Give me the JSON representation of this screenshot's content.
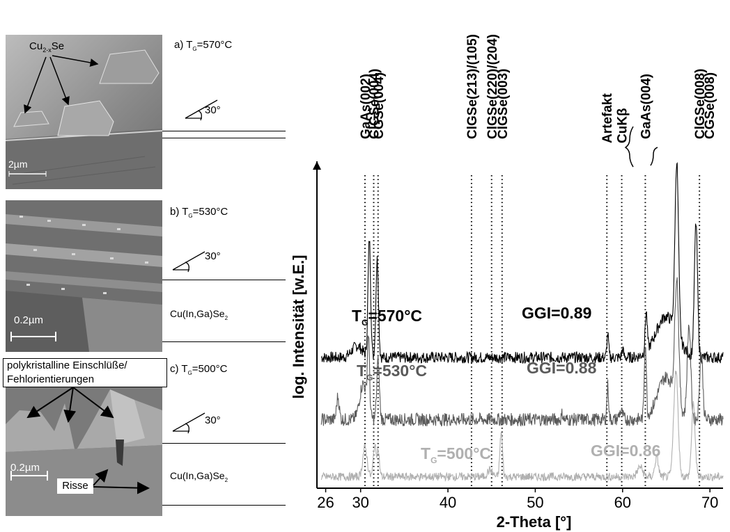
{
  "panels": [
    {
      "label": "a) T",
      "sub": "G",
      "temp": "=570°C",
      "angle": "30°",
      "scalebar": "2µm",
      "annotation_main": "Cu",
      "annotation_sub": "2-x",
      "annotation_end": "Se"
    },
    {
      "label": "b) T",
      "sub": "G",
      "temp": "=530°C",
      "angle": "30°",
      "scalebar": "0.2µm",
      "layer_main": "Cu(In,Ga)Se",
      "layer_sub": "2"
    },
    {
      "label": "c) T",
      "sub": "G",
      "temp": "=500°C",
      "angle": "30°",
      "scalebar": "0.2µm",
      "layer_main": "Cu(In,Ga)Se",
      "layer_sub": "2",
      "box_line1": "polykristalline Einschlüße/",
      "box_line2": "Fehlorientierungen",
      "risse": "Risse"
    }
  ],
  "chart_data": {
    "type": "line",
    "xlabel": "2-Theta [°]",
    "ylabel": "log. Intensität [w.E.]",
    "xlim": [
      25,
      71.5
    ],
    "x_ticks": [
      26,
      30,
      40,
      50,
      60,
      70
    ],
    "peak_labels": [
      {
        "x": 30.5,
        "label": "GaAs(002)"
      },
      {
        "x": 31.5,
        "label": "ClGSe(004)"
      },
      {
        "x": 32.0,
        "label": "CGSe(004)"
      },
      {
        "x": 42.7,
        "label": "ClGSe(213)/(105)"
      },
      {
        "x": 45.0,
        "label": "ClGSe(220)/(204)"
      },
      {
        "x": 46.2,
        "label": "ClGSe(003)"
      },
      {
        "x": 58.2,
        "label": "Artefakt"
      },
      {
        "x": 59.9,
        "label": "CuKβ"
      },
      {
        "x": 62.6,
        "label": "GaAs(004)"
      },
      {
        "x": 68.8,
        "label": "ClGSe(008)"
      },
      {
        "x": 69.9,
        "label": "CGSe(008)"
      }
    ],
    "series": [
      {
        "name": "T=570°C",
        "label_main": "T",
        "label_sub": "G",
        "label_temp": "=570°C",
        "ggi": "GGI=0.89",
        "color": "#000000",
        "baseline": 8.0,
        "noise": 0.35,
        "peaks": [
          [
            29.6,
            0.7,
            0.6
          ],
          [
            31.0,
            7.2,
            0.15
          ],
          [
            31.9,
            6.0,
            0.15
          ],
          [
            58.3,
            1.4,
            0.1
          ],
          [
            60.0,
            0.5,
            0.1
          ],
          [
            62.7,
            2.4,
            0.12
          ],
          [
            65.0,
            2.5,
            1.2
          ],
          [
            66.2,
            10.5,
            0.2
          ],
          [
            68.4,
            8.2,
            0.18
          ]
        ]
      },
      {
        "name": "T=530°C",
        "label_main": "T",
        "label_sub": "G",
        "label_temp": "=530°C",
        "ggi": "GGI=0.88",
        "color": "#5a5a5a",
        "baseline": 4.2,
        "noise": 0.4,
        "peaks": [
          [
            27.4,
            1.4,
            0.15
          ],
          [
            30.3,
            2.2,
            0.4
          ],
          [
            30.9,
            4.6,
            0.12
          ],
          [
            32.0,
            3.6,
            0.15
          ],
          [
            53.1,
            0.4,
            0.08
          ],
          [
            58.3,
            2.1,
            0.1
          ],
          [
            59.8,
            0.5,
            0.2
          ],
          [
            62.6,
            4.6,
            0.12
          ],
          [
            65.0,
            2.6,
            1.0
          ],
          [
            66.2,
            7.5,
            0.22
          ],
          [
            67.6,
            5.7,
            0.2
          ],
          [
            69.0,
            4.2,
            0.18
          ]
        ]
      },
      {
        "name": "T=500°C",
        "label_main": "T",
        "label_sub": "G",
        "label_temp": "=500°C",
        "ggi": "GGI=0.86",
        "color": "#b0b0b0",
        "baseline": 0.7,
        "noise": 0.25,
        "peaks": [
          [
            30.5,
            1.8,
            0.25
          ],
          [
            31.6,
            1.9,
            0.15
          ],
          [
            32.0,
            1.6,
            0.15
          ],
          [
            44.8,
            0.4,
            0.3
          ],
          [
            46.1,
            2.7,
            0.15
          ],
          [
            62.0,
            0.6,
            0.3
          ],
          [
            63.9,
            1.2,
            0.2
          ],
          [
            66.1,
            6.5,
            0.25
          ],
          [
            68.1,
            4.4,
            0.2
          ]
        ]
      }
    ],
    "dotted_lines_x": [
      30.5,
      31.5,
      32.0,
      42.7,
      45.0,
      46.2,
      58.2,
      59.9,
      62.6,
      68.8
    ]
  }
}
